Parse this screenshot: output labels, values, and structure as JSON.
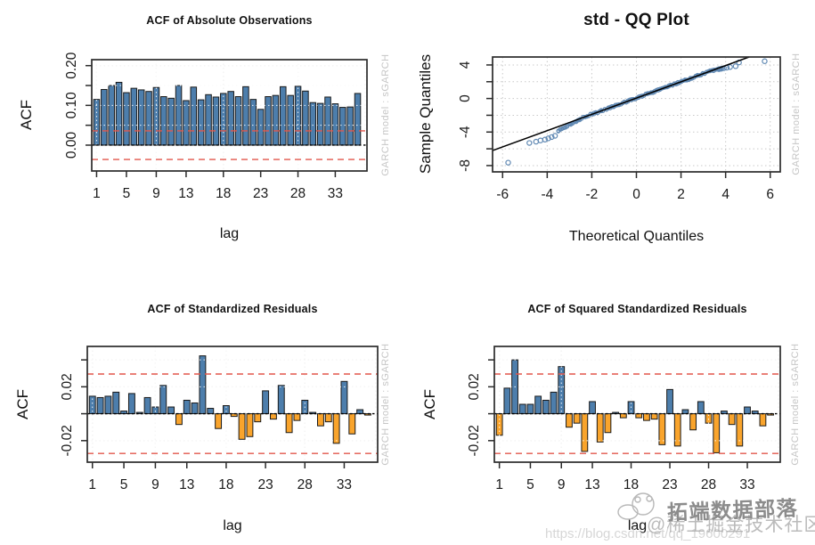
{
  "colors": {
    "bar_positive": "#4D7EAC",
    "bar_negative": "#F9A42C",
    "bar_border": "#1a1a1a",
    "confidence_line": "#E2574C",
    "grid": "#c9c9c9",
    "grid_overlay": "#ffffff",
    "zero_line": "#000000",
    "box_border": "#2b2b2b",
    "tick_text": "#1a1a1a",
    "qq_point": "#5E87B2",
    "qq_line": "#000000",
    "side_text": "#c6c6c6"
  },
  "watermark": {
    "brand_text": "拓端数据部落",
    "community_text": "@稀土掘金技术社区",
    "url_text": "https://blog.csdn.net/qq_19600291",
    "icon": "doodle-cloud-icon"
  },
  "chart_data": [
    {
      "type": "bar",
      "panel": "top-left",
      "title": "ACF of Absolute Observations",
      "xlabel": "lag",
      "ylabel": "ACF",
      "side_text": "GARCH model :  sGARCH",
      "ylim": [
        -0.065,
        0.215
      ],
      "confidence": 0.036,
      "x_ticks": [
        {
          "v": 1,
          "t": "1"
        },
        {
          "v": 5,
          "t": "5"
        },
        {
          "v": 9,
          "t": "9"
        },
        {
          "v": 13,
          "t": "13"
        },
        {
          "v": 18,
          "t": "18"
        },
        {
          "v": 23,
          "t": "23"
        },
        {
          "v": 28,
          "t": "28"
        },
        {
          "v": 33,
          "t": "33"
        }
      ],
      "grid_x_lags": [
        1,
        9,
        18,
        28,
        37
      ],
      "y_tick_marks": [
        0.0,
        0.05,
        0.1,
        0.15,
        0.2
      ],
      "y_tick_labels": [
        {
          "v": 0.0,
          "t": "0.00"
        },
        {
          "v": 0.1,
          "t": "0.10"
        },
        {
          "v": 0.2,
          "t": "0.20"
        }
      ],
      "grid_y": [
        0.05,
        0.1,
        0.15,
        0.2
      ],
      "values": [
        0.115,
        0.14,
        0.15,
        0.158,
        0.132,
        0.143,
        0.139,
        0.135,
        0.145,
        0.122,
        0.118,
        0.15,
        0.112,
        0.146,
        0.114,
        0.127,
        0.121,
        0.13,
        0.135,
        0.122,
        0.147,
        0.115,
        0.09,
        0.122,
        0.125,
        0.147,
        0.125,
        0.148,
        0.136,
        0.107,
        0.105,
        0.121,
        0.104,
        0.095,
        0.096,
        0.13
      ]
    },
    {
      "type": "scatter",
      "panel": "top-right",
      "title": "std - QQ Plot",
      "xlabel": "Theoretical Quantiles",
      "ylabel": "Sample Quantiles",
      "side_text": "GARCH model :  sGARCH",
      "xlim": [
        -6.45,
        6.45
      ],
      "ylim": [
        -8.75,
        4.95
      ],
      "x_ticks": [
        {
          "v": -6,
          "t": "-6"
        },
        {
          "v": -4,
          "t": "-4"
        },
        {
          "v": -2,
          "t": "-2"
        },
        {
          "v": 0,
          "t": "0"
        },
        {
          "v": 2,
          "t": "2"
        },
        {
          "v": 4,
          "t": "4"
        },
        {
          "v": 6,
          "t": "6"
        }
      ],
      "y_tick_marks": [
        -8,
        -6,
        -4,
        -2,
        0,
        2,
        4
      ],
      "y_tick_labels": [
        {
          "v": -8,
          "t": "-8"
        },
        {
          "v": -4,
          "t": "-4"
        },
        {
          "v": 0,
          "t": "0"
        },
        {
          "v": 4,
          "t": "4"
        }
      ],
      "ref_line": {
        "slope": 0.97,
        "intercept": 0.05
      },
      "dense_band": {
        "x_start": -3.5,
        "x_end": 3.75,
        "step": 0.08,
        "spread": 0.22
      },
      "outlier_points": [
        [
          -5.75,
          -7.65
        ],
        [
          -4.8,
          -5.3
        ],
        [
          -4.5,
          -5.15
        ],
        [
          -4.3,
          -5.0
        ],
        [
          -4.1,
          -4.9
        ],
        [
          -3.95,
          -4.75
        ],
        [
          -3.8,
          -4.6
        ],
        [
          -3.65,
          -4.45
        ],
        [
          3.7,
          3.5
        ],
        [
          3.8,
          3.55
        ],
        [
          3.92,
          3.62
        ],
        [
          4.05,
          3.68
        ],
        [
          4.2,
          3.75
        ],
        [
          4.45,
          3.85
        ],
        [
          4.6,
          4.3
        ],
        [
          5.75,
          4.45
        ]
      ]
    },
    {
      "type": "bar",
      "panel": "bottom-left",
      "title": "ACF of Standardized Residuals",
      "xlabel": "lag",
      "ylabel": "ACF",
      "side_text": "GARCH model :  sGARCH",
      "ylim": [
        -0.036,
        0.05
      ],
      "confidence": 0.0295,
      "x_ticks": [
        {
          "v": 1,
          "t": "1"
        },
        {
          "v": 5,
          "t": "5"
        },
        {
          "v": 9,
          "t": "9"
        },
        {
          "v": 13,
          "t": "13"
        },
        {
          "v": 18,
          "t": "18"
        },
        {
          "v": 23,
          "t": "23"
        },
        {
          "v": 28,
          "t": "28"
        },
        {
          "v": 33,
          "t": "33"
        }
      ],
      "grid_x_lags": [
        1,
        9,
        18,
        28,
        37
      ],
      "y_tick_marks": [
        -0.02,
        0.0,
        0.02,
        0.04
      ],
      "y_tick_labels": [
        {
          "v": 0.02,
          "t": "0.02"
        },
        {
          "v": -0.02,
          "t": "-0.02"
        }
      ],
      "grid_y": [
        -0.02,
        0.02,
        0.04
      ],
      "values": [
        0.013,
        0.012,
        0.013,
        0.016,
        0.002,
        0.015,
        0.001,
        0.012,
        0.005,
        0.021,
        0.005,
        -0.008,
        0.01,
        0.008,
        0.043,
        0.004,
        -0.011,
        0.006,
        -0.002,
        -0.019,
        -0.017,
        -0.006,
        0.017,
        -0.004,
        0.021,
        -0.014,
        -0.005,
        0.01,
        0.001,
        -0.009,
        -0.006,
        -0.022,
        0.024,
        -0.015,
        0.003,
        -0.001
      ]
    },
    {
      "type": "bar",
      "panel": "bottom-right",
      "title": "ACF of Squared Standardized Residuals",
      "xlabel": "lag",
      "ylabel": "ACF",
      "side_text": "GARCH model :  sGARCH",
      "ylim": [
        -0.036,
        0.05
      ],
      "confidence": 0.0295,
      "x_ticks": [
        {
          "v": 1,
          "t": "1"
        },
        {
          "v": 5,
          "t": "5"
        },
        {
          "v": 9,
          "t": "9"
        },
        {
          "v": 13,
          "t": "13"
        },
        {
          "v": 18,
          "t": "18"
        },
        {
          "v": 23,
          "t": "23"
        },
        {
          "v": 28,
          "t": "28"
        },
        {
          "v": 33,
          "t": "33"
        }
      ],
      "grid_x_lags": [
        1,
        9,
        18,
        28,
        37
      ],
      "y_tick_marks": [
        -0.02,
        0.0,
        0.02,
        0.04
      ],
      "y_tick_labels": [
        {
          "v": 0.02,
          "t": "0.02"
        },
        {
          "v": -0.02,
          "t": "-0.02"
        }
      ],
      "grid_y": [
        -0.02,
        0.02,
        0.04
      ],
      "values": [
        -0.016,
        0.019,
        0.04,
        0.007,
        0.007,
        0.013,
        0.01,
        0.016,
        0.035,
        -0.01,
        -0.007,
        -0.028,
        0.009,
        -0.021,
        -0.014,
        0.001,
        -0.003,
        0.009,
        -0.003,
        -0.005,
        -0.004,
        -0.023,
        0.018,
        -0.024,
        0.003,
        -0.012,
        0.009,
        -0.007,
        -0.029,
        0.002,
        -0.008,
        -0.024,
        0.005,
        0.002,
        -0.009,
        -0.001
      ]
    }
  ]
}
